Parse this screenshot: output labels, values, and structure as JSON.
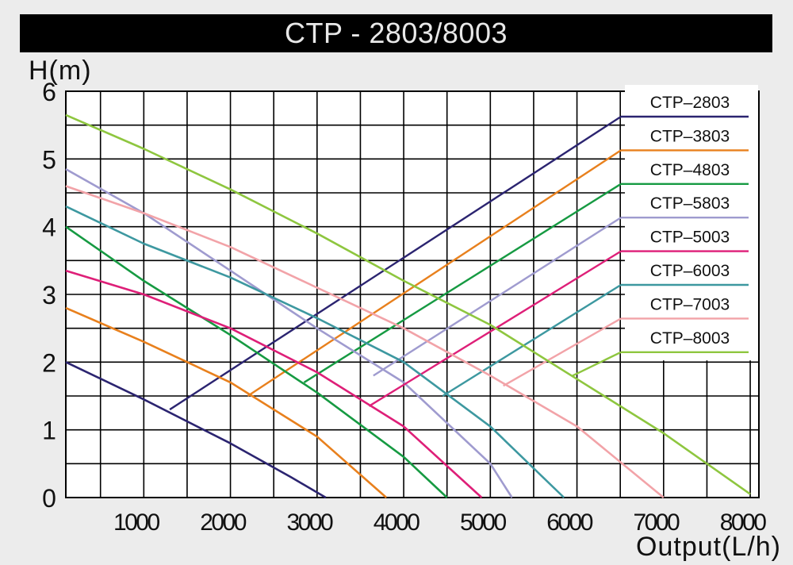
{
  "title": "CTP - 2803/8003",
  "chart_data": {
    "type": "line",
    "title": "CTP - 2803/8003",
    "xlabel": "Output(L/h)",
    "ylabel": "H(m)",
    "xlim": [
      100,
      8100
    ],
    "ylim": [
      0,
      6
    ],
    "x_ticks": [
      1000,
      2000,
      3000,
      4000,
      5000,
      6000,
      7000,
      8000
    ],
    "y_ticks": [
      0,
      1,
      2,
      3,
      4,
      5,
      6
    ],
    "grid": true,
    "legend_position": "top-right",
    "series": [
      {
        "name": "CTP–2803",
        "color": "#2b2470",
        "x": [
          100,
          1000,
          2000,
          2700,
          3100
        ],
        "y": [
          2.0,
          1.45,
          0.8,
          0.3,
          0.0
        ]
      },
      {
        "name": "CTP–3803",
        "color": "#e8801d",
        "x": [
          100,
          1000,
          2000,
          3000,
          3800
        ],
        "y": [
          2.8,
          2.3,
          1.7,
          0.9,
          0.0
        ]
      },
      {
        "name": "CTP–4803",
        "color": "#169a42",
        "x": [
          100,
          1000,
          2000,
          3000,
          4000,
          4500
        ],
        "y": [
          4.0,
          3.2,
          2.4,
          1.55,
          0.6,
          0.0
        ]
      },
      {
        "name": "CTP–5803",
        "color": "#9f9bcf",
        "x": [
          100,
          1000,
          2000,
          3000,
          4000,
          5000,
          5250
        ],
        "y": [
          4.85,
          4.2,
          3.35,
          2.5,
          1.7,
          0.5,
          0.0
        ]
      },
      {
        "name": "CTP–5003",
        "color": "#de1f78",
        "x": [
          100,
          1000,
          2000,
          3000,
          4000,
          4900
        ],
        "y": [
          3.35,
          3.0,
          2.5,
          1.85,
          1.05,
          0.0
        ]
      },
      {
        "name": "CTP–6003",
        "color": "#3d98a0",
        "x": [
          100,
          1000,
          2000,
          3000,
          4000,
          5000,
          5850
        ],
        "y": [
          4.3,
          3.75,
          3.25,
          2.65,
          2.0,
          1.05,
          0.0
        ]
      },
      {
        "name": "CTP–7003",
        "color": "#f2a3a8",
        "x": [
          100,
          1000,
          2000,
          3000,
          4000,
          5000,
          6000,
          7000
        ],
        "y": [
          4.6,
          4.2,
          3.7,
          3.1,
          2.5,
          1.8,
          1.05,
          0.0
        ]
      },
      {
        "name": "CTP–8003",
        "color": "#8ec63f",
        "x": [
          100,
          1000,
          2000,
          3000,
          4000,
          5000,
          6000,
          7000,
          8000
        ],
        "y": [
          5.65,
          5.15,
          4.55,
          3.9,
          3.2,
          2.55,
          1.75,
          0.95,
          0.05
        ]
      }
    ],
    "leader_starts": [
      {
        "x": 1300,
        "y": 1.3
      },
      {
        "x": 2200,
        "y": 1.5
      },
      {
        "x": 2850,
        "y": 1.7
      },
      {
        "x": 3650,
        "y": 1.8
      },
      {
        "x": 3600,
        "y": 1.35
      },
      {
        "x": 4450,
        "y": 1.5
      },
      {
        "x": 5150,
        "y": 1.65
      },
      {
        "x": 5950,
        "y": 1.8
      }
    ]
  }
}
